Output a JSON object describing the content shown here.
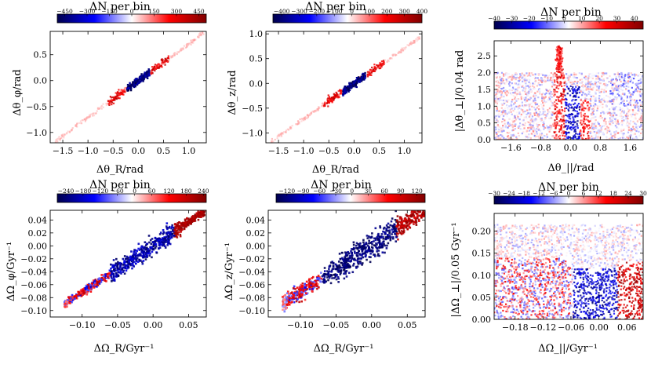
{
  "figure": {
    "description_layout": "2x3 grid of density-difference panels with colorbars"
  },
  "chart_data": [
    {
      "type": "heatmap",
      "id": "p1",
      "title": "ΔN per bin",
      "xlabel": "Δθ_R/rad",
      "ylabel": "Δθ_φ/rad",
      "xlim": [
        -1.75,
        1.35
      ],
      "ylim": [
        -1.2,
        0.95
      ],
      "xticks": [
        -1.5,
        -1.0,
        -0.5,
        0.0,
        0.5,
        1.0
      ],
      "xtick_labels": [
        "−1.5",
        "−1.0",
        "−0.5",
        "0.0",
        "0.5",
        "1.0"
      ],
      "yticks": [
        -1.0,
        -0.5,
        0.0,
        0.5
      ],
      "ytick_labels": [
        "−1.0",
        "−0.5",
        "0.0",
        "0.5"
      ],
      "colorbar": {
        "range": [
          -500,
          500
        ],
        "ticks": [
          -450,
          -300,
          -150,
          0,
          150,
          300,
          450
        ],
        "tick_labels": [
          "−450",
          "−300",
          "−150",
          "0",
          "150",
          "300",
          "450"
        ]
      },
      "structure": "diagonal band",
      "band_slope": 0.71
    },
    {
      "type": "heatmap",
      "id": "p2",
      "title": "ΔN per bin",
      "xlabel": "Δθ_R/rad",
      "ylabel": "Δθ_z/rad",
      "xlim": [
        -1.75,
        1.35
      ],
      "ylim": [
        -1.2,
        1.05
      ],
      "xticks": [
        -1.5,
        -1.0,
        -0.5,
        0.0,
        0.5,
        1.0
      ],
      "xtick_labels": [
        "−1.5",
        "−1.0",
        "−0.5",
        "0.0",
        "0.5",
        "1.0"
      ],
      "yticks": [
        -1.0,
        -0.5,
        0.0,
        0.5,
        1.0
      ],
      "ytick_labels": [
        "−1.0",
        "−0.5",
        "0.0",
        "0.5",
        "1.0"
      ],
      "colorbar": {
        "range": [
          -450,
          400
        ],
        "ticks": [
          -400,
          -300,
          -200,
          -100,
          0,
          100,
          200,
          300,
          400
        ],
        "tick_labels": [
          "−400",
          "−300",
          "−200",
          "−100",
          "0",
          "100",
          "200",
          "300",
          "400"
        ]
      },
      "structure": "diagonal band",
      "band_slope": 0.71
    },
    {
      "type": "heatmap",
      "id": "p3",
      "title": "ΔN per bin",
      "xlabel": "Δθ_||/rad",
      "ylabel": "|Δθ_⊥|/0.04 rad",
      "xlim": [
        -2.05,
        1.95
      ],
      "ylim": [
        0.0,
        2.95
      ],
      "xticks": [
        -1.6,
        -0.8,
        0.0,
        0.8,
        1.6
      ],
      "xtick_labels": [
        "−1.6",
        "−0.8",
        "0.0",
        "0.8",
        "1.6"
      ],
      "yticks": [
        0.0,
        0.5,
        1.0,
        1.5,
        2.0,
        2.5
      ],
      "ytick_labels": [
        "0.0",
        "0.5",
        "1.0",
        "1.5",
        "2.0",
        "2.5"
      ],
      "colorbar": {
        "range": [
          -40,
          45
        ],
        "ticks": [
          -40,
          -30,
          -20,
          -10,
          0,
          10,
          20,
          30,
          40
        ],
        "tick_labels": [
          "−40",
          "−30",
          "−20",
          "−10",
          "0",
          "10",
          "20",
          "30",
          "40"
        ]
      },
      "structure": "noisy field, blue column near 0, red column at -0.25 and +0.25"
    },
    {
      "type": "heatmap",
      "id": "p4",
      "title": "ΔN per bin",
      "xlabel": "ΔΩ_R/Gyr⁻¹",
      "ylabel": "ΔΩ_φ/Gyr⁻¹",
      "xlim": [
        -0.145,
        0.075
      ],
      "ylim": [
        -0.11,
        0.055
      ],
      "xticks": [
        -0.1,
        -0.05,
        0.0,
        0.05
      ],
      "xtick_labels": [
        "−0.10",
        "−0.05",
        "0.00",
        "0.05"
      ],
      "yticks": [
        -0.1,
        -0.08,
        -0.06,
        -0.04,
        -0.02,
        0.0,
        0.02,
        0.04
      ],
      "ytick_labels": [
        "−0.10",
        "−0.08",
        "−0.06",
        "−0.04",
        "−0.02",
        "0.00",
        "0.02",
        "0.04"
      ],
      "colorbar": {
        "range": [
          -270,
          250
        ],
        "ticks": [
          -240,
          -180,
          -120,
          -60,
          0,
          60,
          120,
          180,
          240
        ],
        "tick_labels": [
          "−240",
          "−180",
          "−120",
          "−60",
          "0",
          "60",
          "120",
          "180",
          "240"
        ]
      },
      "structure": "diagonal band"
    },
    {
      "type": "heatmap",
      "id": "p5",
      "title": "ΔN per bin",
      "xlabel": "ΔΩ_R/Gyr⁻¹",
      "ylabel": "ΔΩ_z/Gyr⁻¹",
      "xlim": [
        -0.145,
        0.075
      ],
      "ylim": [
        -0.11,
        0.055
      ],
      "xticks": [
        -0.1,
        -0.05,
        0.0,
        0.05
      ],
      "xtick_labels": [
        "−0.10",
        "−0.05",
        "0.00",
        "0.05"
      ],
      "yticks": [
        -0.1,
        -0.08,
        -0.06,
        -0.04,
        -0.02,
        0.0,
        0.02,
        0.04
      ],
      "ytick_labels": [
        "−0.10",
        "−0.08",
        "−0.06",
        "−0.04",
        "−0.02",
        "0.00",
        "0.02",
        "0.04"
      ],
      "colorbar": {
        "range": [
          -140,
          135
        ],
        "ticks": [
          -120,
          -90,
          -60,
          -30,
          0,
          30,
          60,
          90,
          120
        ],
        "tick_labels": [
          "−120",
          "−90",
          "−60",
          "−30",
          "0",
          "30",
          "60",
          "90",
          "120"
        ]
      },
      "structure": "diagonal band"
    },
    {
      "type": "heatmap",
      "id": "p6",
      "title": "ΔN per bin",
      "xlabel": "ΔΩ_||/Gyr⁻¹",
      "ylabel": "|ΔΩ_⊥|/0.05 Gyr⁻¹",
      "xlim": [
        -0.225,
        0.095
      ],
      "ylim": [
        0.0,
        0.24
      ],
      "xticks": [
        -0.18,
        -0.12,
        -0.06,
        0.0,
        0.06
      ],
      "xtick_labels": [
        "−0.18",
        "−0.12",
        "−0.06",
        "0.00",
        "0.06"
      ],
      "yticks": [
        0.0,
        0.05,
        0.1,
        0.15,
        0.2
      ],
      "ytick_labels": [
        "0.00",
        "0.05",
        "0.10",
        "0.15",
        "0.20"
      ],
      "colorbar": {
        "range": [
          -30,
          30
        ],
        "ticks": [
          -30,
          -24,
          -18,
          -12,
          -6,
          0,
          6,
          12,
          18,
          24,
          30
        ],
        "tick_labels": [
          "−30",
          "−24",
          "−18",
          "−12",
          "−6",
          "0",
          "6",
          "12",
          "18",
          "24",
          "30"
        ]
      },
      "structure": "noisy field, blue block from -0.05 to 0.04, red at edges"
    }
  ]
}
